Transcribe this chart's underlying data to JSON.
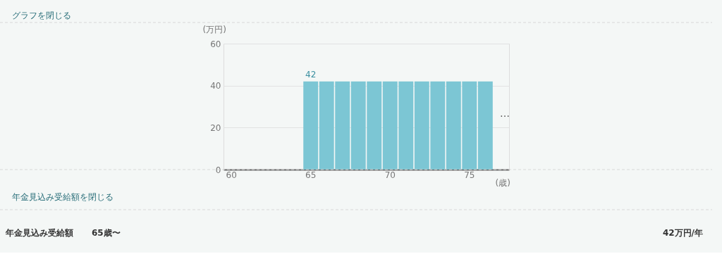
{
  "chart_data": {
    "type": "bar",
    "categories": [
      "60",
      null,
      null,
      null,
      null,
      "65",
      null,
      null,
      null,
      null,
      "70",
      null,
      null,
      null,
      null,
      "75",
      null,
      null
    ],
    "values": [
      null,
      null,
      null,
      null,
      null,
      42,
      42,
      42,
      42,
      42,
      42,
      42,
      42,
      42,
      42,
      42,
      42,
      null
    ],
    "value_labels": [
      null,
      null,
      null,
      null,
      null,
      "42",
      null,
      null,
      null,
      null,
      null,
      null,
      null,
      null,
      null,
      null,
      null,
      null
    ],
    "color": "#7cc6d4",
    "xlabel": "(歳)",
    "ylabel": "(万円)",
    "ylim": [
      0,
      60
    ],
    "yticks": [
      0,
      20,
      40,
      60
    ],
    "grid": "y",
    "annotations": [
      "グラフを閉じる",
      "年金見込み受給額を閉じる",
      "年金見込み受給額",
      "65歳〜",
      "42万円/年",
      "…"
    ]
  }
}
